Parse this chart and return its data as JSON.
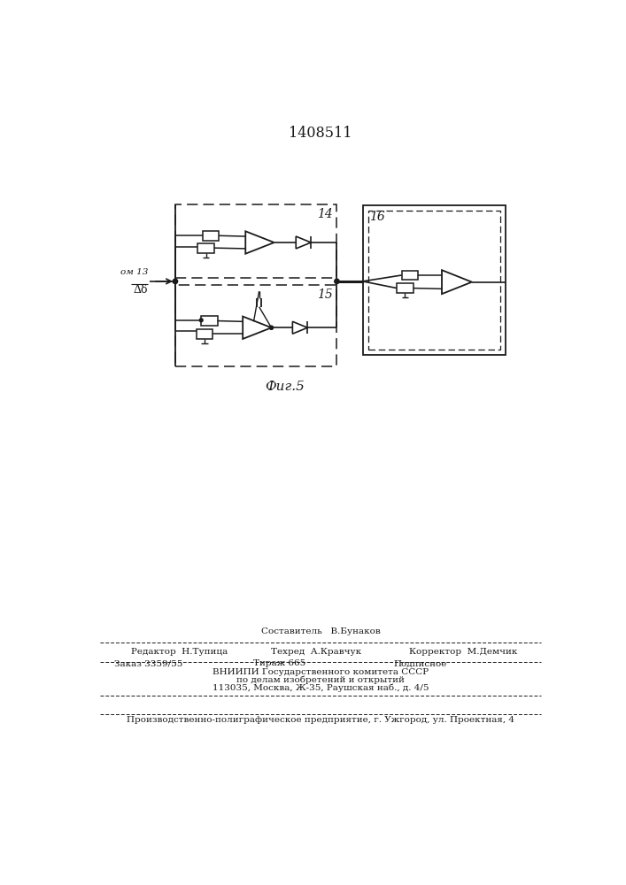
{
  "title": "1408511",
  "fig_label": "Фиг.5",
  "input_label1": "ом 13",
  "input_label2": "Δδ",
  "block14_label": "14",
  "block15_label": "15",
  "block16_label": "16",
  "footer_line1": "Составитель   В.Бунаков",
  "footer_line2_left": "Редактор  Н.Тупица",
  "footer_line2_mid": "Техред  А.Кравчук",
  "footer_line2_right": "Корректор  М.Демчик",
  "footer_line3_left": "Заказ 3359/55",
  "footer_line3_mid": "Тираж 665",
  "footer_line3_right": "Подписное",
  "footer_line4": "ВНИИПИ Государственного комитета СССР",
  "footer_line5": "по делам изобретений и открытий",
  "footer_line6": "113035, Москва, Ж-35, Раушская наб., д. 4/5",
  "footer_line7": "Производственно-полиграфическое предприятие, г. Ужгород, ул. Проектная, 4",
  "bg_color": "#ffffff",
  "line_color": "#1a1a1a"
}
